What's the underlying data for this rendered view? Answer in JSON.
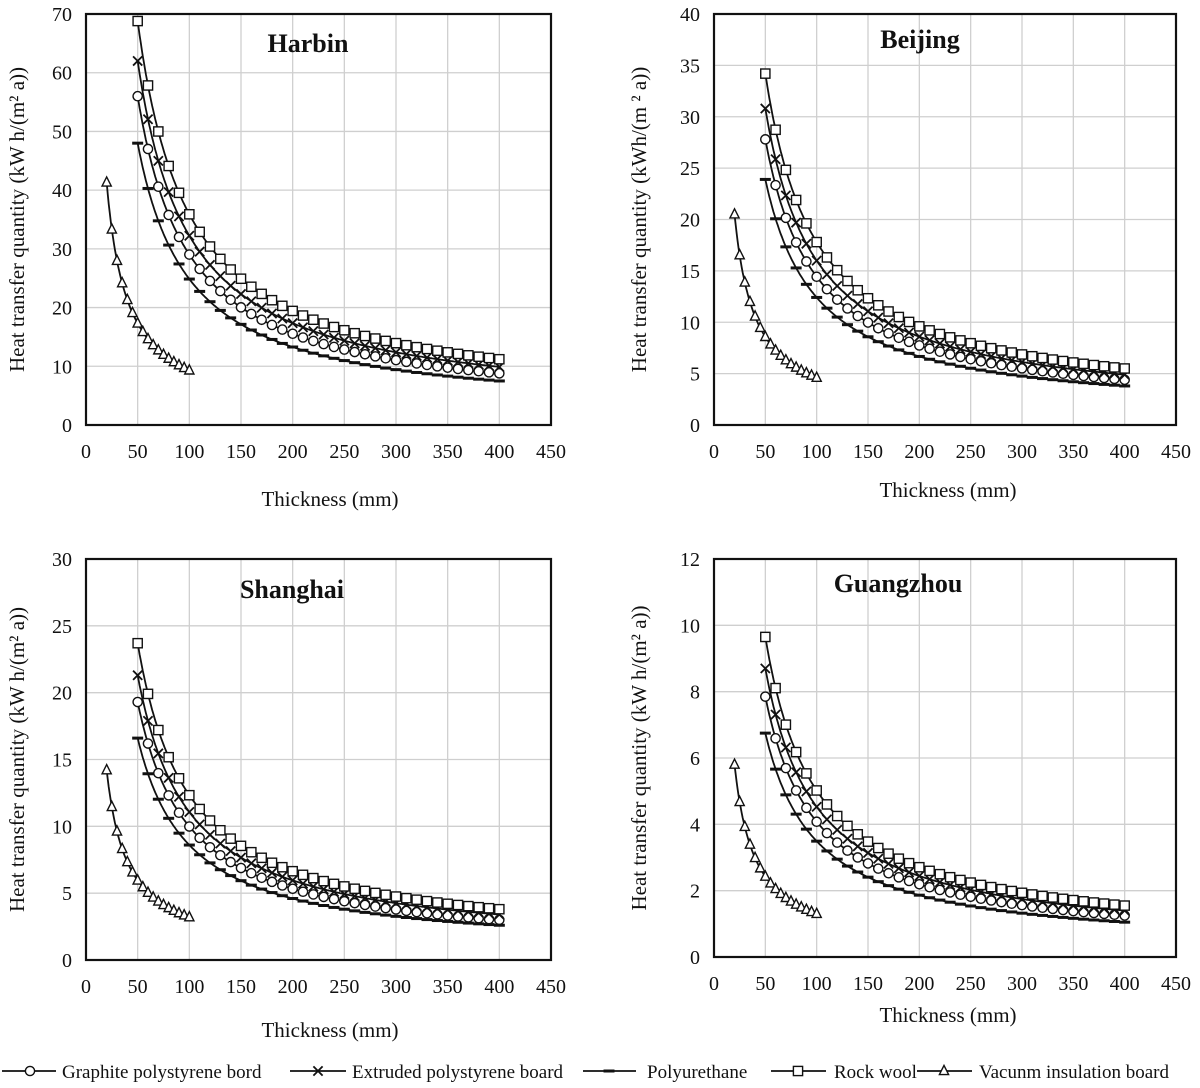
{
  "figure": {
    "legend": [
      {
        "name": "Graphite polystyrene bord",
        "marker": "circle"
      },
      {
        "name": "Extruded polystyrene board",
        "marker": "cross"
      },
      {
        "name": "Polyurethane",
        "marker": "dash"
      },
      {
        "name": "Rock wool",
        "marker": "square"
      },
      {
        "name": "Vacunm insulation board",
        "marker": "triangle"
      }
    ]
  },
  "chart_data": [
    {
      "type": "line",
      "title": "Harbin",
      "xlabel": "Thickness (mm)",
      "ylabel": "Heat transfer quantity  (kW h/(m² a))",
      "xlim": [
        0,
        450
      ],
      "ylim": [
        0,
        70
      ],
      "xticks": [
        0,
        50,
        100,
        150,
        200,
        250,
        300,
        350,
        400,
        450
      ],
      "yticks": [
        0,
        10,
        20,
        30,
        40,
        50,
        60,
        70
      ],
      "series": [
        {
          "name": "Graphite polystyrene bord",
          "x_start": 50,
          "x_end": 400,
          "step": 10,
          "y_at_start": 56.0,
          "y_at_end": 8.8
        },
        {
          "name": "Extruded polystyrene board",
          "x_start": 50,
          "x_end": 400,
          "step": 10,
          "y_at_start": 62.0,
          "y_at_end": 9.9
        },
        {
          "name": "Polyurethane",
          "x_start": 50,
          "x_end": 400,
          "step": 10,
          "y_at_start": 48.0,
          "y_at_end": 7.5
        },
        {
          "name": "Rock wool",
          "x_start": 50,
          "x_end": 400,
          "step": 10,
          "y_at_start": 68.8,
          "y_at_end": 11.2
        },
        {
          "name": "Vacunm insulation board",
          "x_start": 20,
          "x_end": 100,
          "step": 5,
          "y_at_start": 41.3,
          "y_at_end": 9.3
        }
      ]
    },
    {
      "type": "line",
      "title": "Beijing",
      "xlabel": "Thickness (mm)",
      "ylabel": "Heat transfer quantity  (kWh/(m ² a))",
      "xlim": [
        0,
        450
      ],
      "ylim": [
        0,
        40
      ],
      "xticks": [
        0,
        50,
        100,
        150,
        200,
        250,
        300,
        350,
        400,
        450
      ],
      "yticks": [
        0,
        5,
        10,
        15,
        20,
        25,
        30,
        35,
        40
      ],
      "series": [
        {
          "name": "Graphite polystyrene bord",
          "x_start": 50,
          "x_end": 400,
          "step": 10,
          "y_at_start": 27.8,
          "y_at_end": 4.4
        },
        {
          "name": "Extruded polystyrene board",
          "x_start": 50,
          "x_end": 400,
          "step": 10,
          "y_at_start": 30.8,
          "y_at_end": 4.9
        },
        {
          "name": "Polyurethane",
          "x_start": 50,
          "x_end": 400,
          "step": 10,
          "y_at_start": 23.9,
          "y_at_end": 3.8
        },
        {
          "name": "Rock wool",
          "x_start": 50,
          "x_end": 400,
          "step": 10,
          "y_at_start": 34.2,
          "y_at_end": 5.5
        },
        {
          "name": "Vacunm insulation board",
          "x_start": 20,
          "x_end": 100,
          "step": 5,
          "y_at_start": 20.5,
          "y_at_end": 4.6
        }
      ]
    },
    {
      "type": "line",
      "title": "Shanghai",
      "xlabel": "Thickness (mm)",
      "ylabel": "Heat transfer quantity  (kW h/(m² a))",
      "xlim": [
        0,
        450
      ],
      "ylim": [
        0,
        30
      ],
      "xticks": [
        0,
        50,
        100,
        150,
        200,
        250,
        300,
        350,
        400,
        450
      ],
      "yticks": [
        0,
        5,
        10,
        15,
        20,
        25,
        30
      ],
      "series": [
        {
          "name": "Graphite polystyrene bord",
          "x_start": 50,
          "x_end": 400,
          "step": 10,
          "y_at_start": 19.3,
          "y_at_end": 3.0
        },
        {
          "name": "Extruded polystyrene board",
          "x_start": 50,
          "x_end": 400,
          "step": 10,
          "y_at_start": 21.3,
          "y_at_end": 3.4
        },
        {
          "name": "Polyurethane",
          "x_start": 50,
          "x_end": 400,
          "step": 10,
          "y_at_start": 16.6,
          "y_at_end": 2.6
        },
        {
          "name": "Rock wool",
          "x_start": 50,
          "x_end": 400,
          "step": 10,
          "y_at_start": 23.7,
          "y_at_end": 3.8
        },
        {
          "name": "Vacunm insulation board",
          "x_start": 20,
          "x_end": 100,
          "step": 5,
          "y_at_start": 14.2,
          "y_at_end": 3.2
        }
      ]
    },
    {
      "type": "line",
      "title": "Guangzhou",
      "xlabel": "Thickness (mm)",
      "ylabel": "Heat transfer quantity  (kW h/(m² a))",
      "xlim": [
        0,
        450
      ],
      "ylim": [
        0,
        12
      ],
      "xticks": [
        0,
        50,
        100,
        150,
        200,
        250,
        300,
        350,
        400,
        450
      ],
      "yticks": [
        0,
        2,
        4,
        6,
        8,
        10,
        12
      ],
      "series": [
        {
          "name": "Graphite polystyrene bord",
          "x_start": 50,
          "x_end": 400,
          "step": 10,
          "y_at_start": 7.85,
          "y_at_end": 1.25
        },
        {
          "name": "Extruded polystyrene board",
          "x_start": 50,
          "x_end": 400,
          "step": 10,
          "y_at_start": 8.7,
          "y_at_end": 1.4
        },
        {
          "name": "Polyurethane",
          "x_start": 50,
          "x_end": 400,
          "step": 10,
          "y_at_start": 6.75,
          "y_at_end": 1.05
        },
        {
          "name": "Rock wool",
          "x_start": 50,
          "x_end": 400,
          "step": 10,
          "y_at_start": 9.65,
          "y_at_end": 1.55
        },
        {
          "name": "Vacunm insulation board",
          "x_start": 20,
          "x_end": 100,
          "step": 5,
          "y_at_start": 5.8,
          "y_at_end": 1.3
        }
      ]
    }
  ]
}
